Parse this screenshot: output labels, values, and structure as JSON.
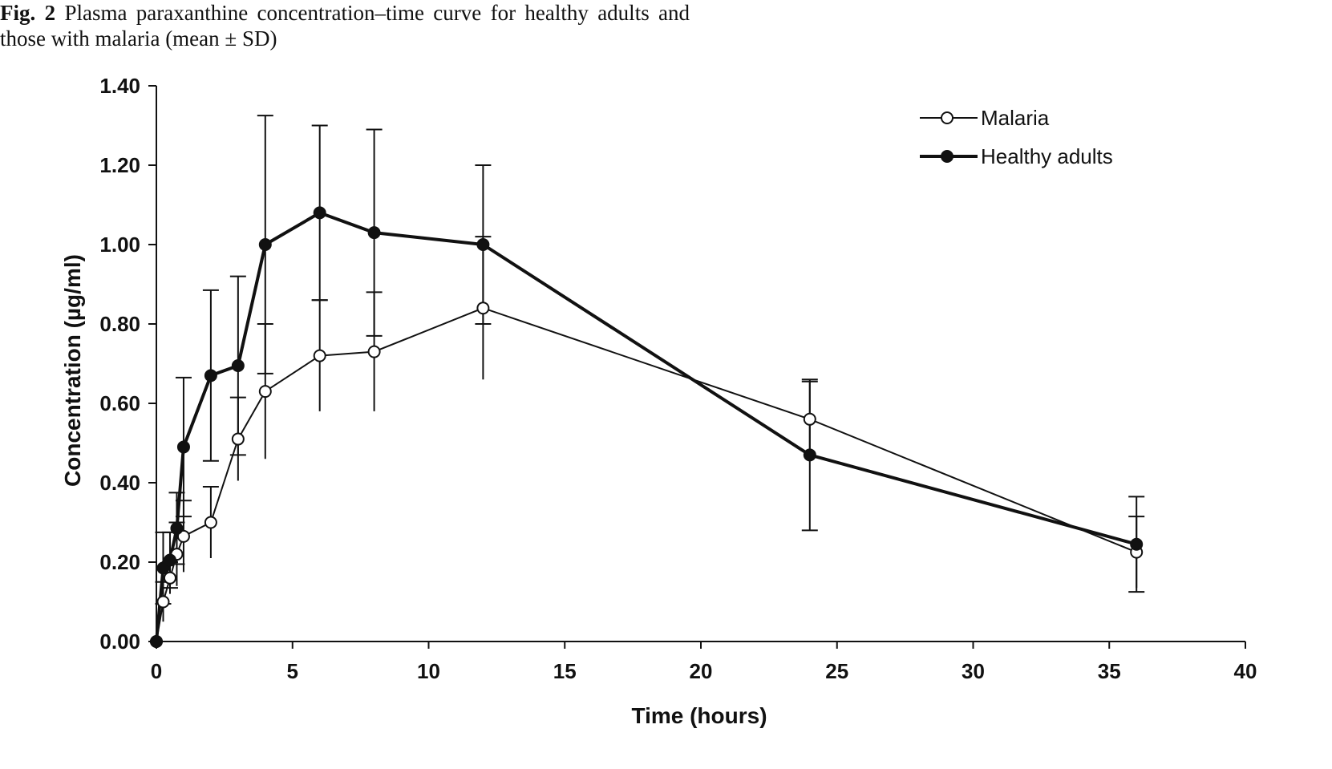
{
  "caption": {
    "label": "Fig. 2",
    "text": "Plasma paraxanthine concentration–time curve for healthy adults and those with malaria (mean ± SD)"
  },
  "chart_data": {
    "type": "line",
    "title": "",
    "xlabel": "Time (hours)",
    "ylabel": "Concentration (µg/ml)",
    "xlim": [
      0,
      40
    ],
    "ylim": [
      0,
      1.4
    ],
    "xticks": [
      "0",
      "5",
      "10",
      "15",
      "20",
      "25",
      "30",
      "35",
      "40"
    ],
    "yticks": [
      "0.00",
      "0.20",
      "0.40",
      "0.60",
      "0.80",
      "1.00",
      "1.20",
      "1.40"
    ],
    "grid": false,
    "legend_position": "top-right",
    "series": [
      {
        "name": "Malaria",
        "marker": "open-circle",
        "color": "#111111",
        "x": [
          0,
          0.25,
          0.5,
          0.75,
          1,
          2,
          3,
          4,
          6,
          8,
          12,
          24,
          36
        ],
        "y": [
          0,
          0.1,
          0.16,
          0.22,
          0.265,
          0.3,
          0.51,
          0.63,
          0.72,
          0.73,
          0.84,
          0.56,
          0.225
        ],
        "sd": [
          0,
          0.05,
          0.04,
          0.08,
          0.09,
          0.09,
          0.105,
          0.17,
          0.14,
          0.15,
          0.18,
          0.095,
          0.09
        ]
      },
      {
        "name": "Healthy adults",
        "marker": "filled-circle",
        "color": "#111111",
        "x": [
          0,
          0.25,
          0.5,
          0.75,
          1,
          2,
          3,
          4,
          6,
          8,
          12,
          24,
          36
        ],
        "y": [
          0,
          0.185,
          0.205,
          0.285,
          0.49,
          0.67,
          0.695,
          1.0,
          1.08,
          1.03,
          1.0,
          0.47,
          0.245
        ],
        "sd": [
          0,
          0.09,
          0.07,
          0.09,
          0.175,
          0.215,
          0.225,
          0.325,
          0.22,
          0.26,
          0.2,
          0.19,
          0.12
        ]
      }
    ]
  }
}
